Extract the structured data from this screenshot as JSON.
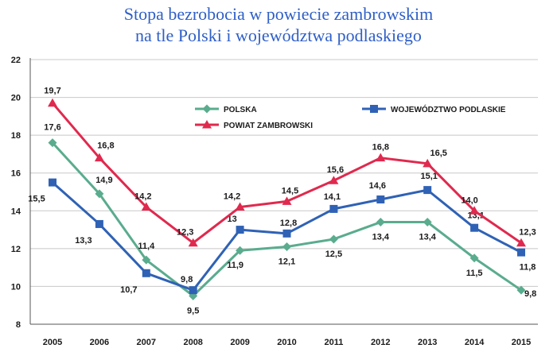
{
  "title": {
    "line1": "Stopa bezrobocia w powiecie zambrowskim",
    "line2": "na tle Polski i województwa podlaskiego"
  },
  "colors": {
    "polska": "#5aac8e",
    "podlaskie": "#2f62b5",
    "zambrowski": "#e0294e",
    "title": "#2f5fc7",
    "grid": "#c8c8c8"
  },
  "chart_data": {
    "type": "line",
    "x": [
      "2005",
      "2006",
      "2007",
      "2008",
      "2009",
      "2010",
      "2011",
      "2012",
      "2013",
      "2014",
      "2015"
    ],
    "ylim": [
      8,
      22
    ],
    "yticks": [
      8,
      10,
      12,
      14,
      16,
      18,
      20,
      22
    ],
    "grid": "horizontal",
    "legend": "top",
    "series": [
      {
        "name": "POLSKA",
        "key": "polska",
        "marker": "diamond",
        "values": [
          17.6,
          14.9,
          11.4,
          9.5,
          11.9,
          12.1,
          12.5,
          13.4,
          13.4,
          11.5,
          9.8
        ],
        "labels": [
          "17,6",
          "14,9",
          "11,4",
          "9,5",
          "11,9",
          "12,1",
          "12,5",
          "13,4",
          "13,4",
          "11,5",
          "9,8"
        ]
      },
      {
        "name": "WOJEWÓDZTWO PODLASKIE",
        "key": "podlaskie",
        "marker": "square",
        "values": [
          15.5,
          13.3,
          10.7,
          9.8,
          13.0,
          12.8,
          14.1,
          14.6,
          15.1,
          13.1,
          11.8
        ],
        "labels": [
          "15,5",
          "13,3",
          "10,7",
          "9,8",
          "13",
          "12,8",
          "14,1",
          "14,6",
          "15,1",
          "13,1",
          "11,8"
        ]
      },
      {
        "name": "POWIAT ZAMBROWSKI",
        "key": "zambrowski",
        "marker": "triangle",
        "values": [
          19.7,
          16.8,
          14.2,
          12.3,
          14.2,
          14.5,
          15.6,
          16.8,
          16.5,
          14.0,
          12.3
        ],
        "labels": [
          "19,7",
          "16,8",
          "14,2",
          "12,3",
          "14,2",
          "14,5",
          "15,6",
          "16,8",
          "16,5",
          "14,0",
          "12,3"
        ]
      }
    ]
  }
}
